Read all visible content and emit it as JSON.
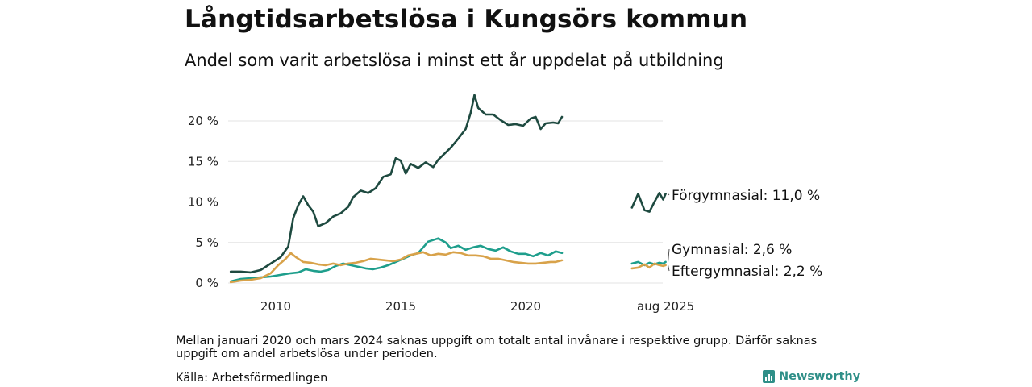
{
  "title": "Långtidsarbetslösa i Kungsörs kommun",
  "subtitle": "Andel som varit arbetslösa i minst ett år uppdelat på utbildning",
  "note": "Mellan januari 2020 och mars 2024 saknas uppgift om totalt antal invånare i respektive grupp. Därför saknas uppgift om andel arbetslösa under perioden.",
  "source": "Källa: Arbetsförmedlingen",
  "brand": "Newsworthy",
  "chart_data": {
    "type": "line",
    "grid": "horizontal",
    "ylim": [
      0,
      22
    ],
    "y_ticks": [
      0,
      5,
      10,
      15,
      20
    ],
    "y_tick_labels": [
      "0 %",
      "5 %",
      "10 %",
      "15 %",
      "20 %"
    ],
    "x_ticks": [
      2010,
      2015,
      2020,
      2025.6
    ],
    "x_tick_labels": [
      "2010",
      "2015",
      "2020",
      "aug 2025"
    ],
    "series": [
      {
        "name": "Förgymnasial",
        "color": "#1e4a40",
        "end_label": "Förgymnasial: 11,0 %",
        "segments": [
          [
            [
              2008.2,
              1.4
            ],
            [
              2008.6,
              1.4
            ],
            [
              2009.0,
              1.3
            ],
            [
              2009.4,
              1.6
            ],
            [
              2009.8,
              2.4
            ],
            [
              2010.2,
              3.2
            ],
            [
              2010.5,
              4.5
            ],
            [
              2010.7,
              8.0
            ],
            [
              2010.9,
              9.6
            ],
            [
              2011.1,
              10.7
            ],
            [
              2011.3,
              9.6
            ],
            [
              2011.5,
              8.8
            ],
            [
              2011.7,
              7.0
            ],
            [
              2012.0,
              7.4
            ],
            [
              2012.3,
              8.2
            ],
            [
              2012.6,
              8.6
            ],
            [
              2012.9,
              9.4
            ],
            [
              2013.1,
              10.6
            ],
            [
              2013.4,
              11.4
            ],
            [
              2013.7,
              11.1
            ],
            [
              2014.0,
              11.7
            ],
            [
              2014.3,
              13.1
            ],
            [
              2014.6,
              13.4
            ],
            [
              2014.8,
              15.4
            ],
            [
              2015.0,
              15.1
            ],
            [
              2015.2,
              13.5
            ],
            [
              2015.4,
              14.7
            ],
            [
              2015.7,
              14.2
            ],
            [
              2016.0,
              14.9
            ],
            [
              2016.3,
              14.3
            ],
            [
              2016.5,
              15.2
            ],
            [
              2016.7,
              15.8
            ],
            [
              2017.0,
              16.7
            ],
            [
              2017.3,
              17.8
            ],
            [
              2017.6,
              19.0
            ],
            [
              2017.8,
              21.0
            ],
            [
              2017.95,
              23.2
            ],
            [
              2018.1,
              21.6
            ],
            [
              2018.4,
              20.8
            ],
            [
              2018.7,
              20.8
            ],
            [
              2019.0,
              20.1
            ],
            [
              2019.3,
              19.5
            ],
            [
              2019.6,
              19.6
            ],
            [
              2019.9,
              19.4
            ],
            [
              2020.2,
              20.3
            ],
            [
              2020.4,
              20.5
            ],
            [
              2020.6,
              19.0
            ],
            [
              2020.8,
              19.7
            ],
            [
              2021.1,
              19.8
            ],
            [
              2021.3,
              19.7
            ],
            [
              2021.45,
              20.5
            ]
          ],
          [
            [
              2024.25,
              9.3
            ],
            [
              2024.5,
              11.0
            ],
            [
              2024.75,
              9.0
            ],
            [
              2024.95,
              8.8
            ],
            [
              2025.15,
              10.0
            ],
            [
              2025.35,
              11.1
            ],
            [
              2025.5,
              10.3
            ],
            [
              2025.6,
              11.0
            ]
          ]
        ]
      },
      {
        "name": "Gymnasial",
        "color": "#1e9e8c",
        "end_label": "Gymnasial:  2,6 %",
        "segments": [
          [
            [
              2008.2,
              0.2
            ],
            [
              2008.6,
              0.5
            ],
            [
              2009.0,
              0.6
            ],
            [
              2009.4,
              0.7
            ],
            [
              2009.8,
              0.8
            ],
            [
              2010.2,
              1.0
            ],
            [
              2010.6,
              1.2
            ],
            [
              2010.9,
              1.3
            ],
            [
              2011.2,
              1.7
            ],
            [
              2011.5,
              1.5
            ],
            [
              2011.8,
              1.4
            ],
            [
              2012.1,
              1.6
            ],
            [
              2012.4,
              2.1
            ],
            [
              2012.7,
              2.4
            ],
            [
              2013.0,
              2.2
            ],
            [
              2013.3,
              2.0
            ],
            [
              2013.6,
              1.8
            ],
            [
              2013.9,
              1.7
            ],
            [
              2014.2,
              1.9
            ],
            [
              2014.5,
              2.2
            ],
            [
              2014.8,
              2.6
            ],
            [
              2015.1,
              3.0
            ],
            [
              2015.4,
              3.4
            ],
            [
              2015.7,
              3.7
            ],
            [
              2015.9,
              4.4
            ],
            [
              2016.1,
              5.1
            ],
            [
              2016.3,
              5.3
            ],
            [
              2016.5,
              5.5
            ],
            [
              2016.8,
              5.0
            ],
            [
              2017.0,
              4.3
            ],
            [
              2017.3,
              4.6
            ],
            [
              2017.6,
              4.1
            ],
            [
              2017.9,
              4.4
            ],
            [
              2018.2,
              4.6
            ],
            [
              2018.5,
              4.2
            ],
            [
              2018.8,
              4.0
            ],
            [
              2019.1,
              4.4
            ],
            [
              2019.4,
              3.9
            ],
            [
              2019.7,
              3.6
            ],
            [
              2020.0,
              3.6
            ],
            [
              2020.3,
              3.3
            ],
            [
              2020.6,
              3.7
            ],
            [
              2020.9,
              3.4
            ],
            [
              2021.2,
              3.9
            ],
            [
              2021.45,
              3.7
            ]
          ],
          [
            [
              2024.25,
              2.4
            ],
            [
              2024.5,
              2.6
            ],
            [
              2024.75,
              2.2
            ],
            [
              2024.95,
              2.5
            ],
            [
              2025.15,
              2.3
            ],
            [
              2025.35,
              2.5
            ],
            [
              2025.5,
              2.4
            ],
            [
              2025.6,
              2.6
            ]
          ]
        ]
      },
      {
        "name": "Eftergymnasial",
        "color": "#d8a24a",
        "end_label": "Eftergymnasial:  2,2 %",
        "segments": [
          [
            [
              2008.2,
              0.1
            ],
            [
              2008.6,
              0.3
            ],
            [
              2009.0,
              0.4
            ],
            [
              2009.4,
              0.6
            ],
            [
              2009.8,
              1.2
            ],
            [
              2010.1,
              2.2
            ],
            [
              2010.4,
              3.0
            ],
            [
              2010.6,
              3.7
            ],
            [
              2010.8,
              3.2
            ],
            [
              2011.1,
              2.6
            ],
            [
              2011.4,
              2.5
            ],
            [
              2011.7,
              2.3
            ],
            [
              2012.0,
              2.2
            ],
            [
              2012.3,
              2.4
            ],
            [
              2012.6,
              2.2
            ],
            [
              2012.9,
              2.4
            ],
            [
              2013.2,
              2.5
            ],
            [
              2013.5,
              2.7
            ],
            [
              2013.8,
              3.0
            ],
            [
              2014.1,
              2.9
            ],
            [
              2014.4,
              2.8
            ],
            [
              2014.7,
              2.7
            ],
            [
              2015.0,
              2.9
            ],
            [
              2015.3,
              3.4
            ],
            [
              2015.6,
              3.6
            ],
            [
              2015.9,
              3.8
            ],
            [
              2016.2,
              3.4
            ],
            [
              2016.5,
              3.6
            ],
            [
              2016.8,
              3.5
            ],
            [
              2017.1,
              3.8
            ],
            [
              2017.4,
              3.7
            ],
            [
              2017.7,
              3.4
            ],
            [
              2018.0,
              3.4
            ],
            [
              2018.3,
              3.3
            ],
            [
              2018.6,
              3.0
            ],
            [
              2018.9,
              3.0
            ],
            [
              2019.2,
              2.8
            ],
            [
              2019.5,
              2.6
            ],
            [
              2019.8,
              2.5
            ],
            [
              2020.1,
              2.4
            ],
            [
              2020.4,
              2.4
            ],
            [
              2020.7,
              2.5
            ],
            [
              2021.0,
              2.6
            ],
            [
              2021.2,
              2.6
            ],
            [
              2021.45,
              2.8
            ]
          ],
          [
            [
              2024.25,
              1.8
            ],
            [
              2024.5,
              1.9
            ],
            [
              2024.75,
              2.3
            ],
            [
              2024.95,
              1.9
            ],
            [
              2025.15,
              2.4
            ],
            [
              2025.35,
              2.2
            ],
            [
              2025.5,
              2.1
            ],
            [
              2025.6,
              2.2
            ]
          ]
        ]
      }
    ]
  }
}
